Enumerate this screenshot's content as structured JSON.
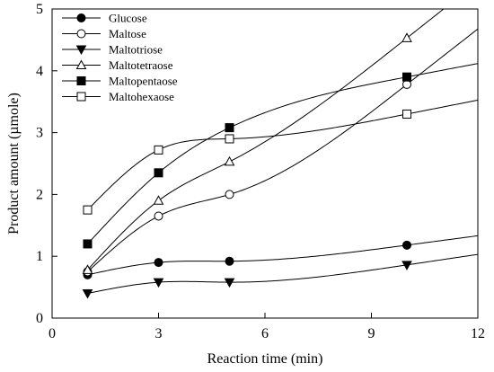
{
  "chart_data": {
    "type": "line",
    "xlabel": "Reaction time (min)",
    "ylabel": "Product amount (µmole)",
    "xlim": [
      0,
      12
    ],
    "ylim": [
      0,
      5
    ],
    "xticks": [
      0,
      3,
      6,
      9,
      12
    ],
    "yticks": [
      0,
      1,
      2,
      3,
      4,
      5
    ],
    "grid": false,
    "legend_position": "top-left",
    "series": [
      {
        "name": "Glucose",
        "marker": "circle-filled",
        "x": [
          1,
          3,
          5,
          10
        ],
        "y": [
          0.7,
          0.9,
          0.92,
          1.18
        ]
      },
      {
        "name": "Maltose",
        "marker": "circle-open",
        "x": [
          1,
          3,
          5,
          10
        ],
        "y": [
          0.75,
          1.65,
          2.0,
          3.78
        ]
      },
      {
        "name": "Maltotriose",
        "marker": "triangle-down-filled",
        "x": [
          1,
          3,
          5,
          10
        ],
        "y": [
          0.4,
          0.58,
          0.58,
          0.86
        ]
      },
      {
        "name": "Maltotetraose",
        "marker": "triangle-up-open",
        "x": [
          1,
          3,
          5,
          10
        ],
        "y": [
          0.78,
          1.9,
          2.53,
          4.53
        ]
      },
      {
        "name": "Maltopentaose",
        "marker": "square-filled",
        "x": [
          1,
          3,
          5,
          10
        ],
        "y": [
          1.2,
          2.35,
          3.08,
          3.9
        ]
      },
      {
        "name": "Maltohexaose",
        "marker": "square-open",
        "x": [
          1,
          3,
          5,
          10
        ],
        "y": [
          1.75,
          2.72,
          2.9,
          3.3
        ]
      }
    ]
  }
}
